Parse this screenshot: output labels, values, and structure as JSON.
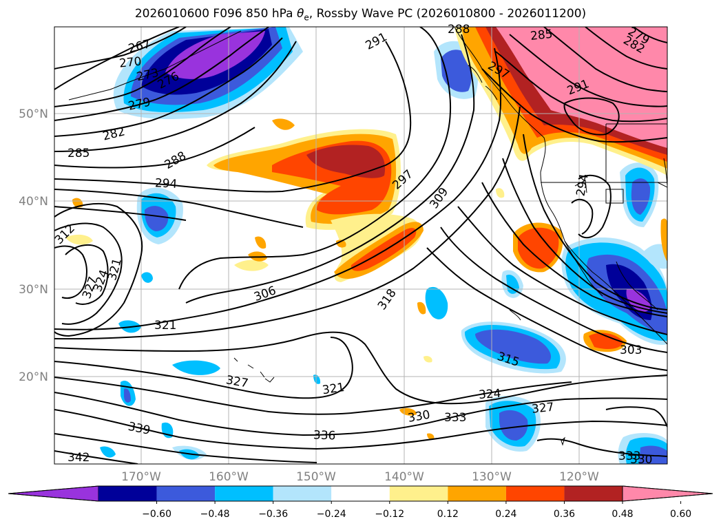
{
  "title": "2026010600 F096 850 hPa θe, Rossby Wave PC (2026010800 - 2026011200)",
  "title_parts": {
    "prefix": "2026010600 F096 850 hPa ",
    "theta": "θ",
    "sub": "e",
    "suffix": ", Rossby Wave PC (2026010800 - 2026011200)"
  },
  "lat_labels": [
    "50°N",
    "40°N",
    "30°N",
    "20°N"
  ],
  "lon_labels": [
    "170°W",
    "160°W",
    "150°W",
    "140°W",
    "130°W",
    "120°W"
  ],
  "colorbar": {
    "ticks": [
      "−0.60",
      "−0.48",
      "−0.36",
      "−0.24",
      "−0.12",
      "0.12",
      "0.24",
      "0.36",
      "0.48",
      "0.60"
    ],
    "colors": [
      "#9933dd",
      "#000099",
      "#3c5adc",
      "#00bfff",
      "#b3e5fc",
      "#ffffff",
      "#fff08c",
      "#ffa500",
      "#ff4500",
      "#b22222",
      "#ff88aa"
    ]
  },
  "contour_labels": [
    {
      "text": "267"
    },
    {
      "text": "270"
    },
    {
      "text": "273"
    },
    {
      "text": "276"
    },
    {
      "text": "279"
    },
    {
      "text": "282"
    },
    {
      "text": "285"
    },
    {
      "text": "288"
    },
    {
      "text": "291"
    },
    {
      "text": "294"
    },
    {
      "text": "297"
    },
    {
      "text": "297"
    },
    {
      "text": "309"
    },
    {
      "text": "312"
    },
    {
      "text": "327"
    },
    {
      "text": "324"
    },
    {
      "text": "321"
    },
    {
      "text": "306"
    },
    {
      "text": "318"
    },
    {
      "text": "321"
    },
    {
      "text": "327"
    },
    {
      "text": "321"
    },
    {
      "text": "315"
    },
    {
      "text": "303"
    },
    {
      "text": "324"
    },
    {
      "text": "327"
    },
    {
      "text": "330"
    },
    {
      "text": "333"
    },
    {
      "text": "336"
    },
    {
      "text": "339"
    },
    {
      "text": "342"
    },
    {
      "text": "333"
    },
    {
      "text": "330"
    },
    {
      "text": "285"
    },
    {
      "text": "291"
    },
    {
      "text": "294"
    },
    {
      "text": "282"
    },
    {
      "text": "279"
    },
    {
      "text": "288"
    }
  ]
}
